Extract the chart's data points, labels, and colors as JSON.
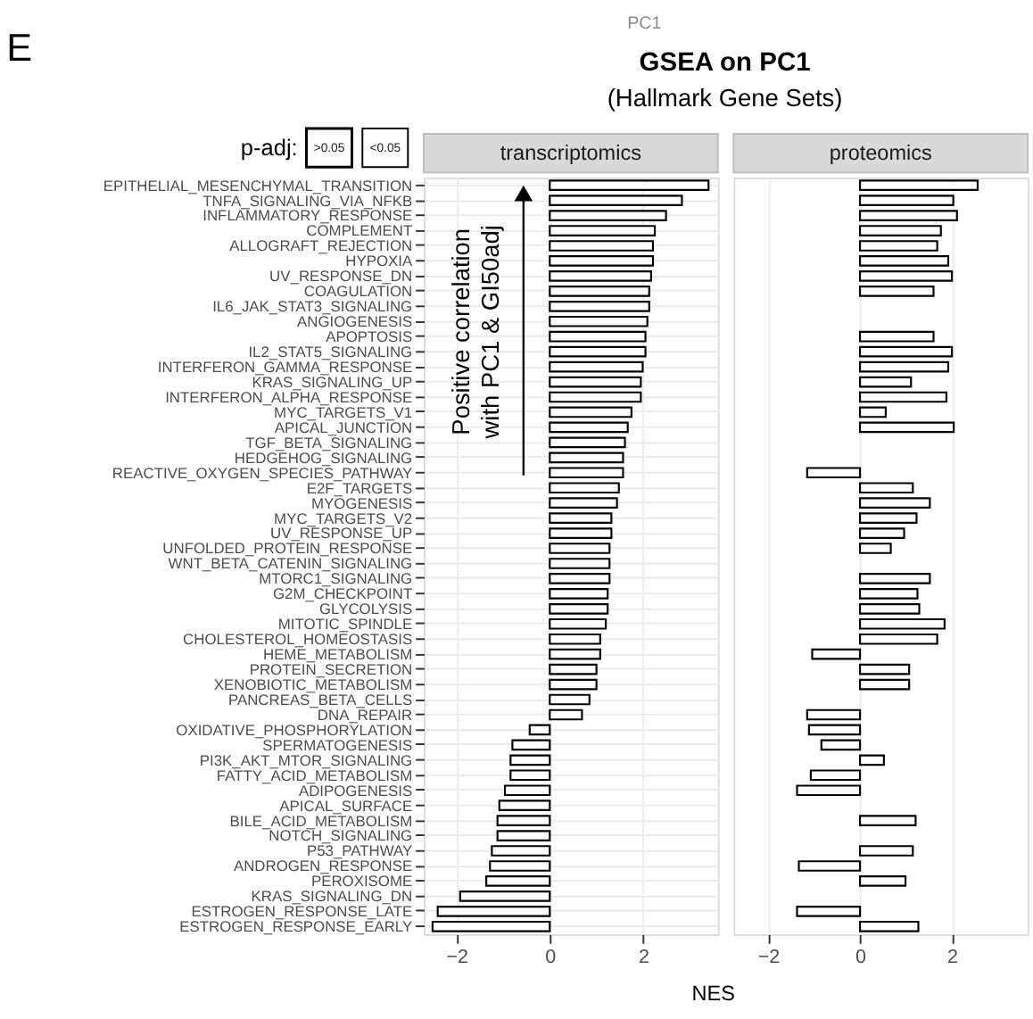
{
  "chart_data": [
    {
      "type": "bar",
      "orientation": "horizontal",
      "title": "GSEA on PC1",
      "subtitle": "(Hallmark Gene Sets)",
      "xlabel": "NES",
      "legend_title": "p-adj:",
      "grid": true,
      "tick_labels": "xy",
      "annotations": [
        "transcriptomics",
        "E",
        "PC1",
        ">0.05",
        "<0.05",
        "Positive correlation",
        "with PC1 & GI50adj"
      ],
      "categories": [
        "EPITHELIAL_MESENCHYMAL_TRANSITION",
        "TNFA_SIGNALING_VIA_NFKB",
        "INFLAMMATORY_RESPONSE",
        "COMPLEMENT",
        "ALLOGRAFT_REJECTION",
        "HYPOXIA",
        "UV_RESPONSE_DN",
        "COAGULATION",
        "IL6_JAK_STAT3_SIGNALING",
        "ANGIOGENESIS",
        "APOPTOSIS",
        "IL2_STAT5_SIGNALING",
        "INTERFERON_GAMMA_RESPONSE",
        "KRAS_SIGNALING_UP",
        "INTERFERON_ALPHA_RESPONSE",
        "MYC_TARGETS_V1",
        "APICAL_JUNCTION",
        "TGF_BETA_SIGNALING",
        "HEDGEHOG_SIGNALING",
        "REACTIVE_OXYGEN_SPECIES_PATHWAY",
        "E2F_TARGETS",
        "MYOGENESIS",
        "MYC_TARGETS_V2",
        "UV_RESPONSE_UP",
        "UNFOLDED_PROTEIN_RESPONSE",
        "WNT_BETA_CATENIN_SIGNALING",
        "MTORC1_SIGNALING",
        "G2M_CHECKPOINT",
        "GLYCOLYSIS",
        "MITOTIC_SPINDLE",
        "CHOLESTEROL_HOMEOSTASIS",
        "HEME_METABOLISM",
        "PROTEIN_SECRETION",
        "XENOBIOTIC_METABOLISM",
        "PANCREAS_BETA_CELLS",
        "DNA_REPAIR",
        "OXIDATIVE_PHOSPHORYLATION",
        "SPERMATOGENESIS",
        "PI3K_AKT_MTOR_SIGNALING",
        "FATTY_ACID_METABOLISM",
        "ADIPOGENESIS",
        "APICAL_SURFACE",
        "BILE_ACID_METABOLISM",
        "NOTCH_SIGNALING",
        "P53_PATHWAY",
        "ANDROGEN_RESPONSE",
        "PEROXISOME",
        "KRAS_SIGNALING_DN",
        "ESTROGEN_RESPONSE_LATE",
        "ESTROGEN_RESPONSE_EARLY"
      ],
      "values": [
        3.4,
        2.83,
        2.49,
        2.25,
        2.21,
        2.21,
        2.17,
        2.13,
        2.13,
        2.09,
        2.05,
        2.05,
        1.99,
        1.95,
        1.95,
        1.75,
        1.67,
        1.61,
        1.57,
        1.57,
        1.48,
        1.44,
        1.32,
        1.32,
        1.28,
        1.28,
        1.28,
        1.24,
        1.24,
        1.2,
        1.08,
        1.08,
        1.0,
        1.0,
        0.85,
        0.69,
        -0.43,
        -0.8,
        -0.84,
        -0.84,
        -0.96,
        -1.08,
        -1.12,
        -1.12,
        -1.24,
        -1.28,
        -1.36,
        -1.92,
        -2.4,
        -2.51
      ],
      "color": "#000000",
      "xlim": [
        -2.7,
        3.6
      ],
      "xticks": [
        -2,
        0,
        2
      ]
    },
    {
      "type": "bar",
      "orientation": "horizontal",
      "grid": true,
      "tick_labels": "x",
      "annotations": [
        "proteomics"
      ],
      "values": [
        2.56,
        2.03,
        2.11,
        1.76,
        1.68,
        1.92,
        2.0,
        1.6,
        null,
        null,
        1.6,
        2.0,
        1.92,
        1.11,
        1.88,
        0.56,
        2.04,
        null,
        null,
        -1.15,
        1.15,
        1.52,
        1.23,
        0.96,
        0.67,
        null,
        1.52,
        1.25,
        1.29,
        1.84,
        1.68,
        -1.04,
        1.07,
        1.07,
        null,
        -1.15,
        -1.11,
        -0.84,
        0.52,
        -1.07,
        -1.37,
        null,
        1.21,
        null,
        1.15,
        -1.33,
        0.99,
        null,
        -1.37,
        1.27
      ],
      "color": "#000000",
      "xlim": [
        -2.75,
        3.65
      ],
      "xticks": [
        -2,
        0,
        2
      ]
    }
  ]
}
